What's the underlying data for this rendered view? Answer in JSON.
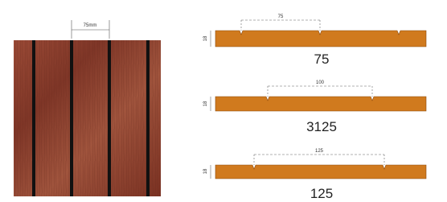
{
  "panel": {
    "width_label": "75mm"
  },
  "profiles": [
    {
      "dimension": "75",
      "thickness": "18",
      "name": "75"
    },
    {
      "dimension": "100",
      "thickness": "18",
      "name": "3125"
    },
    {
      "dimension": "125",
      "thickness": "18",
      "name": "125"
    }
  ]
}
